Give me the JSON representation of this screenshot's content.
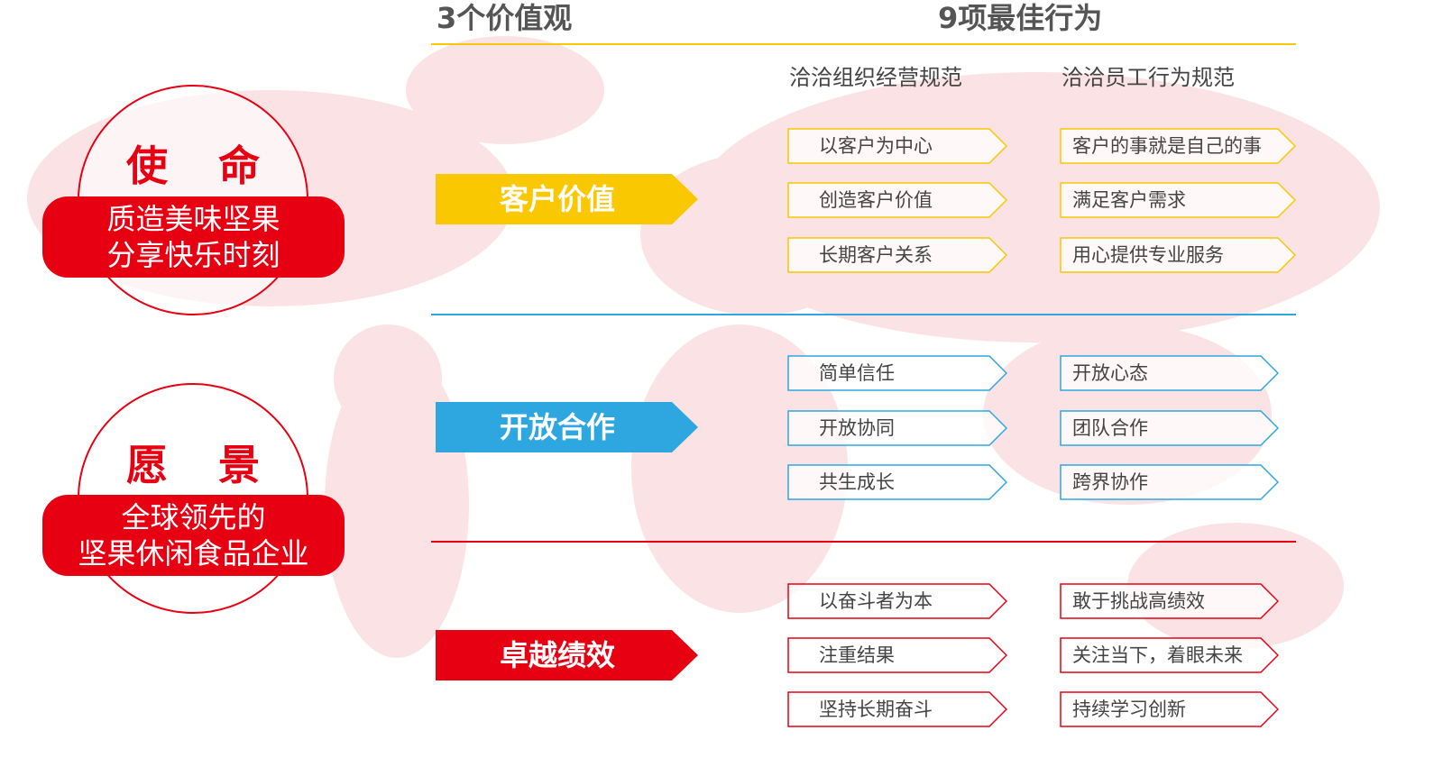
{
  "header": {
    "values_title": "3个价值观",
    "behaviors_title": "9项最佳行为",
    "col1": "洽洽组织经营规范",
    "col2": "洽洽员工行为规范"
  },
  "mission": {
    "title": "使 命",
    "text1": "质造美味坚果",
    "text2": "分享快乐时刻"
  },
  "vision": {
    "title": "愿 景",
    "text1": "全球领先的",
    "text2": "坚果休闲食品企业"
  },
  "values": [
    {
      "label": "客户价值",
      "color": "#f9c800",
      "org": [
        "以客户为中心",
        "创造客户价值",
        "长期客户关系"
      ],
      "staff": [
        "客户的事就是自己的事",
        "满足客户需求",
        "用心提供专业服务"
      ]
    },
    {
      "label": "开放合作",
      "color": "#2ea7e0",
      "org": [
        "简单信任",
        "开放协同",
        "共生成长"
      ],
      "staff": [
        "开放心态",
        "团队合作",
        "跨界协作"
      ]
    },
    {
      "label": "卓越绩效",
      "color": "#e60012",
      "org": [
        "以奋斗者为本",
        "注重结果",
        "坚持长期奋斗"
      ],
      "staff": [
        "敢于挑战高绩效",
        "关注当下，着眼未来",
        "持续学习创新"
      ]
    }
  ]
}
